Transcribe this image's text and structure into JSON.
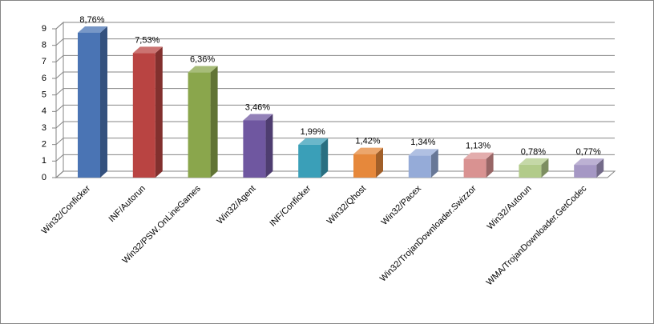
{
  "chart_data": {
    "type": "bar3d",
    "categories": [
      "Win32/Conficker",
      "INF/Autorun",
      "Win32/PSW.OnLineGames",
      "Win32/Agent",
      "INF/Conficker",
      "Win32/Qhost",
      "Win32/Pacex",
      "Win32/TrojanDownloader.Swizzor",
      "Win32/Autorun",
      "WMA/TrojanDownloader.GetCodec"
    ],
    "values": [
      8.76,
      7.53,
      6.36,
      3.46,
      1.99,
      1.42,
      1.34,
      1.13,
      0.78,
      0.77
    ],
    "value_labels": [
      "8,76%",
      "7,53%",
      "6,36%",
      "3,46%",
      "1,99%",
      "1,42%",
      "1,34%",
      "1,13%",
      "0,78%",
      "0,77%"
    ],
    "colors": [
      "#4a74b4",
      "#b94442",
      "#8aa64c",
      "#6f57a0",
      "#3a9fb8",
      "#e6883b",
      "#95abd8",
      "#d99291",
      "#b2cb8a",
      "#a597c4"
    ],
    "ylim": [
      0,
      9
    ],
    "yticks": [
      0,
      1,
      2,
      3,
      4,
      5,
      6,
      7,
      8,
      9
    ],
    "grid": true
  }
}
